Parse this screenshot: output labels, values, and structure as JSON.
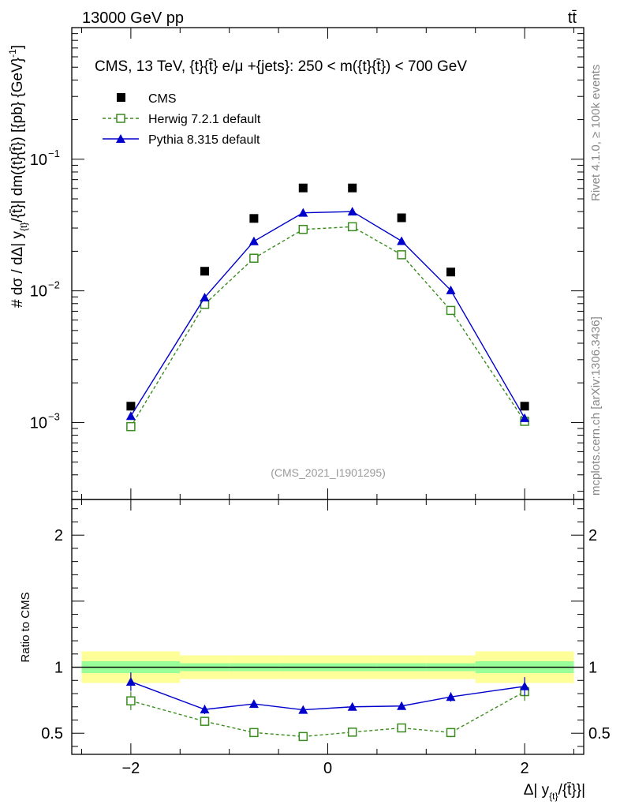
{
  "header": {
    "left": "13000 GeV pp",
    "right": "tt̄"
  },
  "side_labels": {
    "rivet": "Rivet 4.1.0, ≥ 100k events",
    "mcplots": "mcplots.cern.ch [arXiv:1306.3436]"
  },
  "chart_data": {
    "type": "scatter",
    "title": "CMS, 13 TeV, {t}{t̄} e/μ +{jets}: 250 < m({t}{t̄}) < 700 GeV",
    "watermark": "(CMS_2021_I1901295)",
    "ylabel": "# dσ / dΔ| y_{t}/{t̄} | dm({t}{t̄}) [{pb} {GeV}⁻¹]",
    "ylabel_main": "#   dσ / dΔ| y",
    "ylabel_sub": "{t}",
    "ylabel_tail": "/{t̄}| dm({t}{t̄}) [{pb} {GeV}",
    "ylabel_exp": "-1",
    "ylabel_close": "]",
    "xlabel_main": "Δ| y",
    "xlabel_sub": "{t}",
    "xlabel_tail": "/{t̄}}|",
    "ratio_ylabel": "Ratio to CMS",
    "xlim": [
      -2.6,
      2.6
    ],
    "ylim": [
      0.00026,
      1.0
    ],
    "yscale": "log",
    "ratio_ylim": [
      0.34,
      2.27
    ],
    "x_ticks": [
      -2,
      0,
      2
    ],
    "x_tick_labels": [
      "−2",
      "0",
      "2"
    ],
    "y_ticks": [
      0.001,
      0.01,
      0.1
    ],
    "y_tick_labels": [
      {
        "base": "10",
        "exp": "−3"
      },
      {
        "base": "10",
        "exp": "−2"
      },
      {
        "base": "10",
        "exp": "−1"
      }
    ],
    "ratio_ticks": [
      0.5,
      1,
      2
    ],
    "ratio_tick_labels": [
      "0.5",
      "1",
      "2"
    ],
    "x": [
      -2.0,
      -1.25,
      -0.75,
      -0.25,
      0.25,
      0.75,
      1.25,
      2.0
    ],
    "bin_edges": [
      -2.5,
      -1.5,
      -1.0,
      -0.5,
      0.0,
      0.5,
      1.0,
      1.5,
      2.5
    ],
    "band_inner": [
      0.045,
      0.03,
      0.03,
      0.03,
      0.03,
      0.03,
      0.03,
      0.045
    ],
    "band_outer": [
      0.12,
      0.09,
      0.09,
      0.09,
      0.09,
      0.09,
      0.09,
      0.12
    ],
    "legend": [
      "CMS",
      "Herwig 7.2.1 default",
      "Pythia 8.315 default"
    ],
    "series": [
      {
        "name": "CMS",
        "color": "#000000",
        "marker": "square-filled",
        "values": [
          0.00133,
          0.0141,
          0.0355,
          0.0605,
          0.0605,
          0.0359,
          0.0139,
          0.00133
        ]
      },
      {
        "name": "Herwig 7.2.1 default",
        "color": "#3a8c1e",
        "marker": "square-open",
        "line": "dashed",
        "values": [
          0.00093,
          0.0079,
          0.0177,
          0.0293,
          0.0307,
          0.0188,
          0.0071,
          0.00102
        ],
        "ratio": [
          0.745,
          0.59,
          0.505,
          0.475,
          0.508,
          0.54,
          0.505,
          0.815
        ],
        "ratio_err": [
          0.07,
          0.03,
          0.015,
          0.012,
          0.015,
          0.018,
          0.035,
          0.07
        ]
      },
      {
        "name": "Pythia 8.315 default",
        "color": "#0000cc",
        "marker": "triangle-filled",
        "line": "solid",
        "values": [
          0.00112,
          0.0089,
          0.0238,
          0.0392,
          0.04,
          0.0239,
          0.0101,
          0.00108
        ],
        "ratio": [
          0.89,
          0.68,
          0.722,
          0.677,
          0.7,
          0.706,
          0.775,
          0.855
        ],
        "ratio_err": [
          0.07,
          0.035,
          0.02,
          0.012,
          0.012,
          0.02,
          0.035,
          0.07
        ]
      }
    ],
    "colors": {
      "band_outer": "#ffff99",
      "band_inner": "#99ff99",
      "watermark": "#999999",
      "side_text": "#888888"
    }
  }
}
